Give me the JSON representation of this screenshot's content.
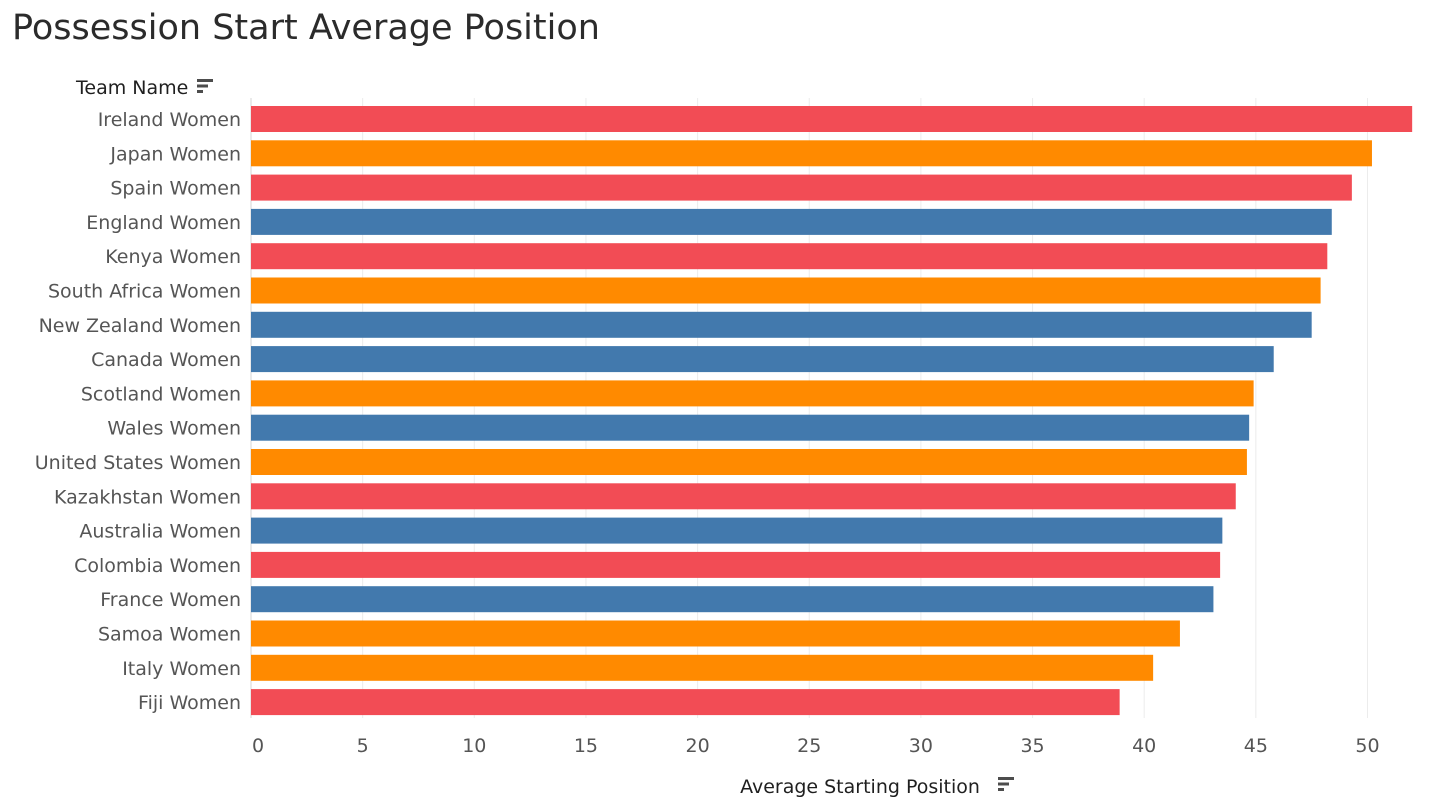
{
  "chart_data": {
    "type": "bar",
    "orientation": "horizontal",
    "title": "Possession Start Average Position",
    "ylabel": "Team Name",
    "xlabel": "Average Starting Position",
    "xlim": [
      0,
      53
    ],
    "xticks": [
      0,
      5,
      10,
      15,
      20,
      25,
      30,
      35,
      40,
      45,
      50
    ],
    "grid": true,
    "sort_icon": "sort-descending-icon",
    "palette": {
      "red": "#f24c55",
      "orange": "#ff8a00",
      "blue": "#4279ad"
    },
    "bars": [
      {
        "category": "Ireland Women",
        "value": 52.0,
        "color": "red"
      },
      {
        "category": "Japan Women",
        "value": 50.2,
        "color": "orange"
      },
      {
        "category": "Spain Women",
        "value": 49.3,
        "color": "red"
      },
      {
        "category": "England Women",
        "value": 48.4,
        "color": "blue"
      },
      {
        "category": "Kenya Women",
        "value": 48.2,
        "color": "red"
      },
      {
        "category": "South Africa Women",
        "value": 47.9,
        "color": "orange"
      },
      {
        "category": "New Zealand Women",
        "value": 47.5,
        "color": "blue"
      },
      {
        "category": "Canada Women",
        "value": 45.8,
        "color": "blue"
      },
      {
        "category": "Scotland Women",
        "value": 44.9,
        "color": "orange"
      },
      {
        "category": "Wales Women",
        "value": 44.7,
        "color": "blue"
      },
      {
        "category": "United States Women",
        "value": 44.6,
        "color": "orange"
      },
      {
        "category": "Kazakhstan Women",
        "value": 44.1,
        "color": "red"
      },
      {
        "category": "Australia Women",
        "value": 43.5,
        "color": "blue"
      },
      {
        "category": "Colombia Women",
        "value": 43.4,
        "color": "red"
      },
      {
        "category": "France Women",
        "value": 43.1,
        "color": "blue"
      },
      {
        "category": "Samoa Women",
        "value": 41.6,
        "color": "orange"
      },
      {
        "category": "Italy Women",
        "value": 40.4,
        "color": "orange"
      },
      {
        "category": "Fiji Women",
        "value": 38.9,
        "color": "red"
      }
    ]
  }
}
